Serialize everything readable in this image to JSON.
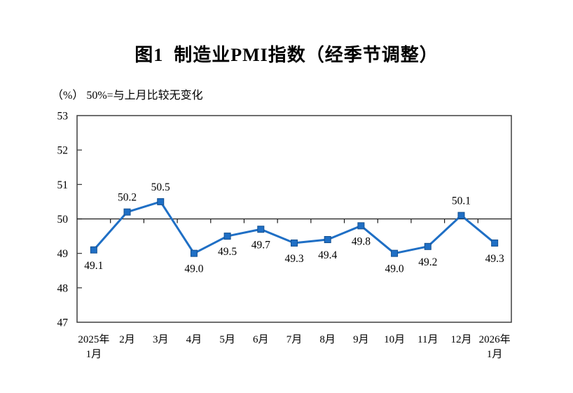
{
  "page": {
    "background": "#ffffff"
  },
  "chart_data": {
    "type": "line",
    "title": "图1  制造业PMI指数（经季节调整）",
    "unit_note": "（%） 50%=与上月比较无变化",
    "categories": [
      "2025年\n1月",
      "2月",
      "3月",
      "4月",
      "5月",
      "6月",
      "7月",
      "8月",
      "9月",
      "10月",
      "11月",
      "12月",
      "2026年\n1月"
    ],
    "values": [
      49.1,
      50.2,
      50.5,
      49.0,
      49.5,
      49.7,
      49.3,
      49.4,
      49.8,
      49.0,
      49.2,
      50.1,
      49.3
    ],
    "data_labels": [
      "49.1",
      "50.2",
      "50.5",
      "49.0",
      "49.5",
      "49.7",
      "49.3",
      "49.4",
      "49.8",
      "49.0",
      "49.2",
      "50.1",
      "49.3"
    ],
    "ylim": [
      47,
      53
    ],
    "y_ticks": [
      47,
      48,
      49,
      50,
      51,
      52,
      53
    ],
    "reference_line": 50,
    "grid": false,
    "legend": "none",
    "colors": {
      "line": "#1f6fc5",
      "marker": "#1f6fc5",
      "marker_border": "#15508f",
      "axis": "#3f3f3f",
      "reference_line": "#1a1a1a",
      "text": "#000000"
    }
  }
}
